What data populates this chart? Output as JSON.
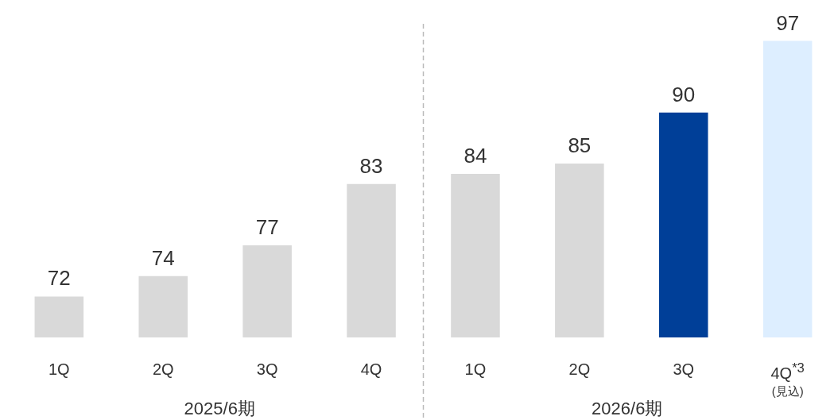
{
  "chart_data": {
    "type": "bar",
    "categories": [
      "1Q",
      "2Q",
      "3Q",
      "4Q",
      "1Q",
      "2Q",
      "3Q",
      "4Q$^{*3}$\n(見込)"
    ],
    "values": [
      72,
      74,
      77,
      83,
      84,
      85,
      90,
      97
    ],
    "colors": [
      "#d9d9d9",
      "#d9d9d9",
      "#d9d9d9",
      "#d9d9d9",
      "#d9d9d9",
      "#d9d9d9",
      "#003f98",
      "#ddeeff"
    ],
    "ylim": [
      68,
      101
    ],
    "tick_labels": "x",
    "data_labels": true,
    "annotations": [
      "2025/6期",
      "2026/6期"
    ]
  }
}
